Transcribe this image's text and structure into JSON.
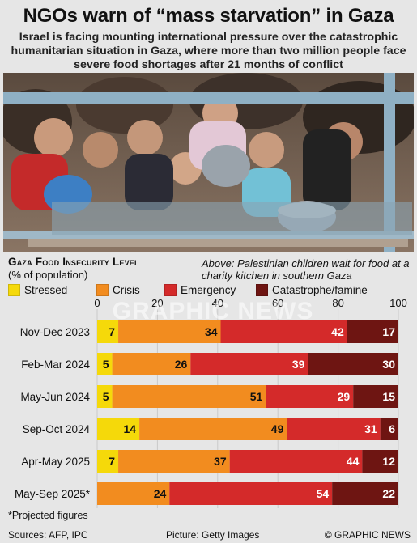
{
  "header": {
    "title": "NGOs warn of “mass starvation” in Gaza",
    "subtitle": "Israel is facing mounting international pressure over the catastrophic humanitarian situation in Gaza, where more than two million people face severe food shortages after 21 months of conflict"
  },
  "photo": {
    "caption": "Above: Palestinian children wait for food at a charity kitchen in southern Gaza",
    "credit": "Picture: Getty Images"
  },
  "watermark": "GRAPHIC NEWS",
  "chart_data": {
    "type": "bar",
    "stacked": true,
    "orientation": "horizontal",
    "title": "Gaza Food Insecurity Level",
    "unit": "(% of population)",
    "xlim": [
      0,
      100
    ],
    "x_ticks": [
      "0",
      "20",
      "40",
      "60",
      "80",
      "100"
    ],
    "categories": [
      "Nov-Dec 2023",
      "Feb-Mar 2024",
      "May-Jun 2024",
      "Sep-Oct 2024",
      "Apr-May 2025",
      "May-Sep 2025*"
    ],
    "series": [
      {
        "name": "Stressed",
        "color": "#f5d90a",
        "values": [
          7,
          5,
          5,
          14,
          7,
          0
        ]
      },
      {
        "name": "Crisis",
        "color": "#f28c1f",
        "values": [
          34,
          26,
          51,
          49,
          37,
          24
        ]
      },
      {
        "name": "Emergency",
        "color": "#d42a2a",
        "values": [
          42,
          39,
          29,
          31,
          44,
          54
        ]
      },
      {
        "name": "Catastrophe/famine",
        "color": "#6e1512",
        "values": [
          17,
          30,
          15,
          6,
          12,
          22
        ]
      }
    ]
  },
  "footnote": "*Projected figures",
  "footer": {
    "sources": "Sources: AFP, IPC",
    "copyright": "© GRAPHIC NEWS"
  }
}
